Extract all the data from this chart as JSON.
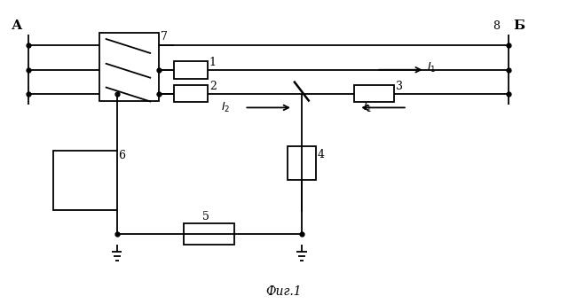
{
  "bg_color": "#ffffff",
  "line_color": "#000000",
  "fig_caption": "Фиг.1",
  "label_A": "А",
  "label_B": "Б",
  "label_7": "7",
  "label_1": "1",
  "label_2": "2",
  "label_3": "3",
  "label_4": "4",
  "label_5": "5",
  "label_6": "6",
  "label_8": "8"
}
